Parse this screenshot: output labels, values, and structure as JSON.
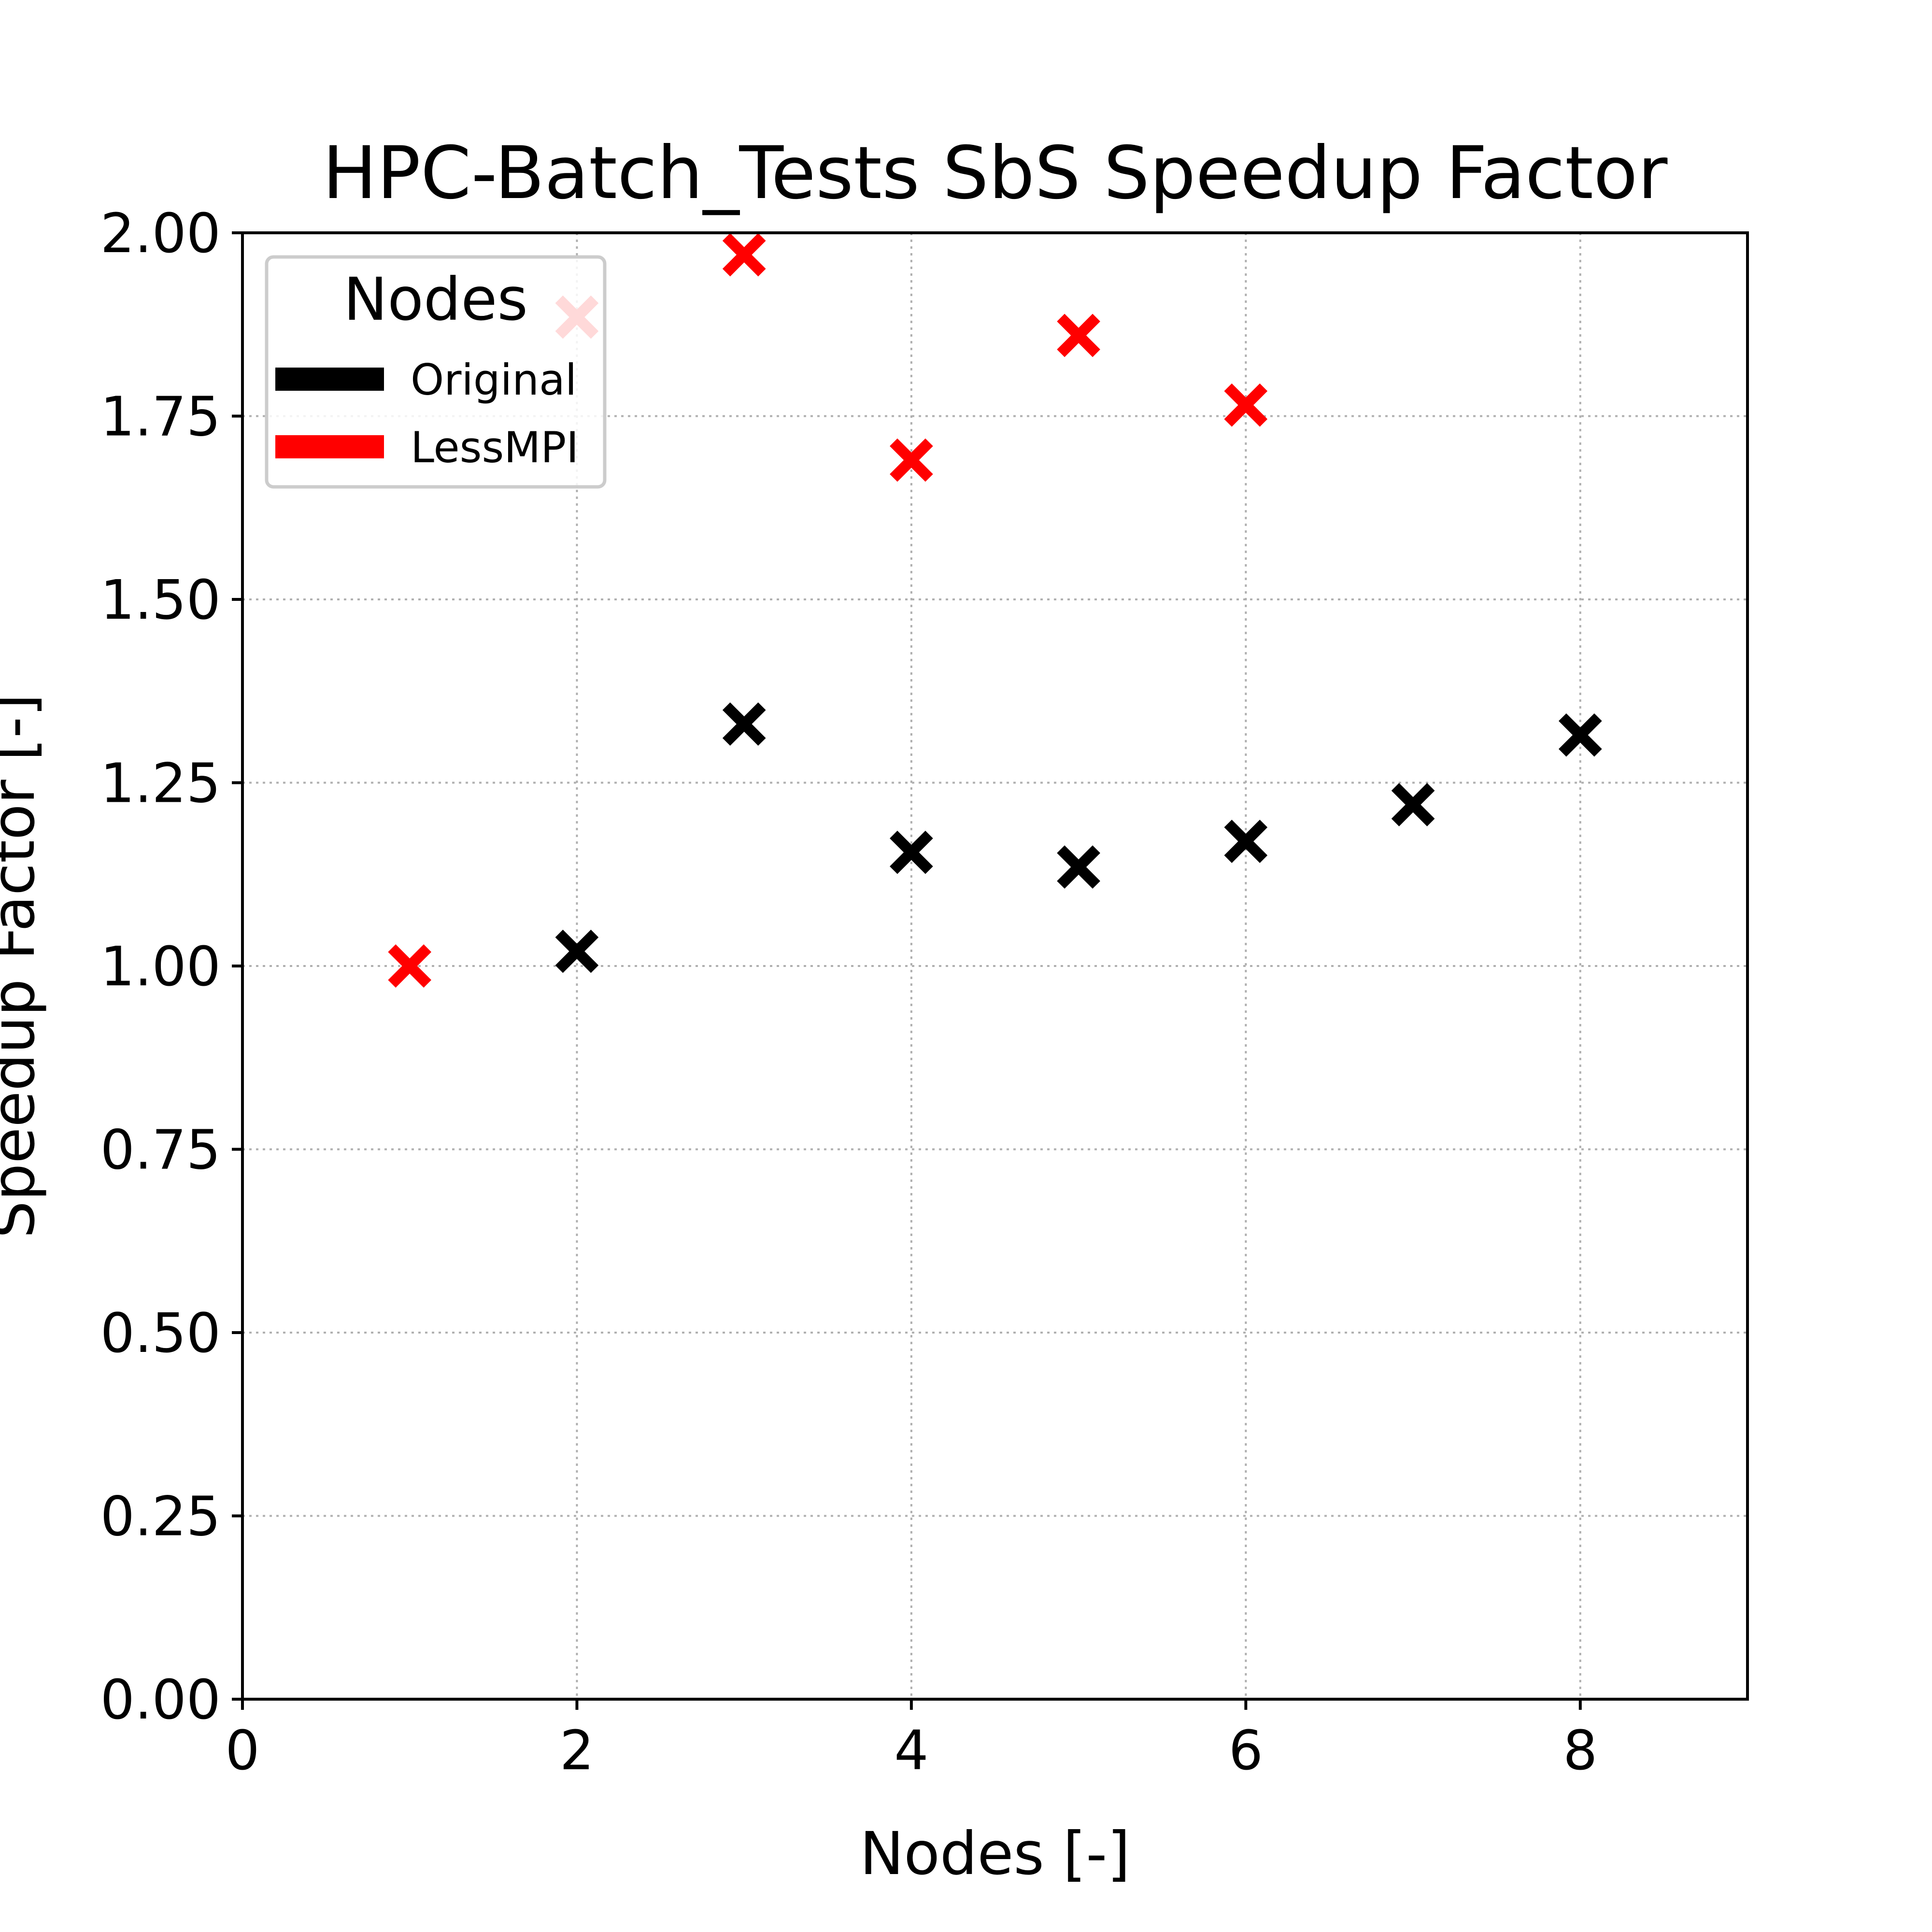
{
  "chart_data": {
    "type": "scatter",
    "title": "HPC-Batch_Tests SbS Speedup Factor",
    "xlabel": "Nodes [-]",
    "ylabel": "Speedup Factor [-]",
    "xlim": [
      0,
      9
    ],
    "ylim": [
      0,
      2
    ],
    "xticks": [
      0,
      2,
      4,
      6,
      8
    ],
    "xtick_labels": [
      "0",
      "2",
      "4",
      "6",
      "8"
    ],
    "yticks": [
      0,
      0.25,
      0.5,
      0.75,
      1.0,
      1.25,
      1.5,
      1.75,
      2.0
    ],
    "ytick_labels": [
      "0.00",
      "0.25",
      "0.50",
      "0.75",
      "1.00",
      "1.25",
      "1.50",
      "1.75",
      "2.00"
    ],
    "grid": true,
    "marker": "X",
    "legend": {
      "title": "Nodes",
      "placement": "upper-left"
    },
    "series": [
      {
        "name": "Original",
        "color": "#000000",
        "points": [
          {
            "x": 2,
            "y": 1.02
          },
          {
            "x": 3,
            "y": 1.33
          },
          {
            "x": 4,
            "y": 1.155
          },
          {
            "x": 5,
            "y": 1.135
          },
          {
            "x": 6,
            "y": 1.17
          },
          {
            "x": 7,
            "y": 1.22
          },
          {
            "x": 8,
            "y": 1.315
          }
        ]
      },
      {
        "name": "LessMPI",
        "color": "#ff0000",
        "points": [
          {
            "x": 1,
            "y": 1.0
          },
          {
            "x": 2,
            "y": 1.885
          },
          {
            "x": 3,
            "y": 1.97
          },
          {
            "x": 4,
            "y": 1.69
          },
          {
            "x": 5,
            "y": 1.86
          },
          {
            "x": 6,
            "y": 1.765
          }
        ]
      }
    ]
  }
}
